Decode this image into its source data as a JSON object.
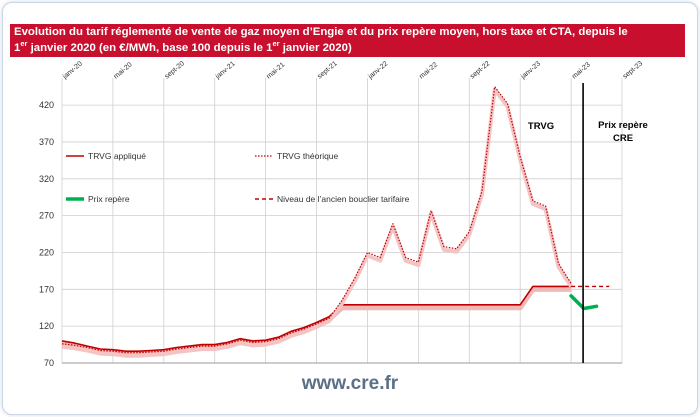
{
  "title": {
    "line1": "Evolution du tarif réglementé de vente de gaz moyen d’Engie et du prix repère moyen, hors taxe et CTA, depuis le",
    "line2_pre": "1",
    "line2_sup1": "er",
    "line2_mid": " janvier 2020 (en €/MWh, base 100 depuis le 1",
    "line2_sup2": "er",
    "line2_post": " janvier 2020)"
  },
  "footer": "www.cre.fr",
  "colors": {
    "title_bg": "#c8102e",
    "trvg_applique": "#c00000",
    "trvg_theorique": "#c00000",
    "prix_repere": "#00b050",
    "bouclier": "#c00000",
    "grid": "#cfcfcf",
    "divider": "#000000"
  },
  "chart_data": {
    "type": "line",
    "x_tick_labels": [
      "janv-20",
      "mai-20",
      "sept-20",
      "janv-21",
      "mai-21",
      "sept-21",
      "janv-22",
      "mai-22",
      "sept-22",
      "janv-23",
      "mai-23",
      "sept-23"
    ],
    "y_ticks": [
      70,
      120,
      170,
      220,
      270,
      320,
      370,
      420
    ],
    "ylim": [
      70,
      450
    ],
    "x_range_months": [
      0,
      44
    ],
    "region_labels": [
      "TRVG",
      "Prix repère CRE"
    ],
    "divider_month": 40,
    "legend": [
      {
        "key": "trvg_applique",
        "label": "TRVG appliqué"
      },
      {
        "key": "trvg_theorique",
        "label": "TRVG théorique"
      },
      {
        "key": "prix_repere",
        "label": "Prix repère"
      },
      {
        "key": "bouclier",
        "label": "Niveau de l’ancien bouclier tarifaire"
      }
    ],
    "series": [
      {
        "key": "trvg_applique",
        "name": "TRVG appliqué",
        "x": [
          0,
          1,
          2,
          3,
          4,
          5,
          6,
          7,
          8,
          9,
          10,
          11,
          12,
          13,
          14,
          15,
          16,
          17,
          18,
          19,
          20,
          21,
          22,
          23,
          24,
          25,
          26,
          27,
          28,
          29,
          30,
          31,
          32,
          33,
          34,
          35,
          36,
          37,
          38,
          39,
          40
        ],
        "values": [
          100,
          97,
          93,
          89,
          88,
          86,
          86,
          87,
          88,
          91,
          93,
          95,
          95,
          98,
          103,
          100,
          101,
          105,
          113,
          118,
          125,
          133,
          149,
          149,
          149,
          149,
          149,
          149,
          149,
          149,
          149,
          149,
          149,
          149,
          149,
          149,
          149,
          174,
          174,
          174,
          174
        ]
      },
      {
        "key": "trvg_theorique",
        "name": "TRVG théorique",
        "x": [
          0,
          1,
          2,
          3,
          4,
          5,
          6,
          7,
          8,
          9,
          10,
          11,
          12,
          13,
          14,
          15,
          16,
          17,
          18,
          19,
          20,
          21,
          22,
          23,
          24,
          25,
          26,
          27,
          28,
          29,
          30,
          31,
          32,
          33,
          34,
          35,
          36,
          37,
          38,
          39,
          40
        ],
        "values": [
          96,
          94,
          91,
          87,
          86,
          84,
          84,
          85,
          86,
          89,
          91,
          93,
          93,
          96,
          101,
          98,
          99,
          103,
          111,
          116,
          123,
          131,
          155,
          185,
          220,
          213,
          259,
          213,
          207,
          277,
          228,
          225,
          248,
          303,
          445,
          422,
          350,
          290,
          283,
          205,
          178
        ]
      },
      {
        "key": "prix_repere",
        "name": "Prix repère",
        "x": [
          40,
          41,
          42
        ],
        "values": [
          161,
          144,
          147
        ]
      },
      {
        "key": "bouclier",
        "name": "Niveau de l’ancien bouclier tarifaire",
        "x": [
          40,
          43
        ],
        "values": [
          174,
          174
        ]
      }
    ]
  }
}
